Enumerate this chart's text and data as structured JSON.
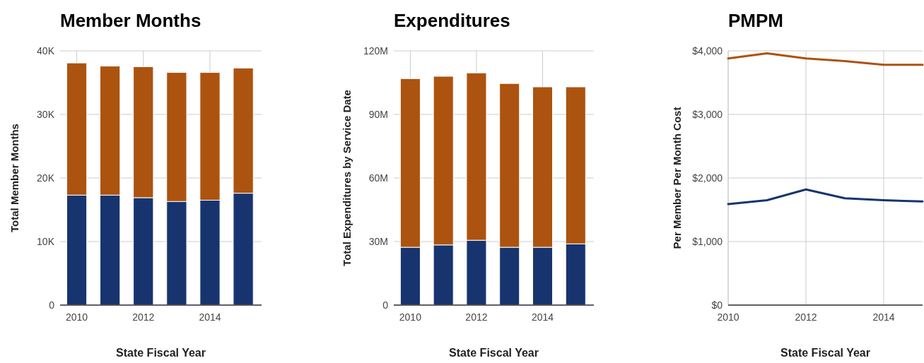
{
  "chart_data": [
    {
      "type": "bar",
      "title": "Member Months",
      "xlabel": "State Fiscal Year",
      "ylabel": "Total Member Months",
      "stacked": true,
      "grid": true,
      "x": [
        2010,
        2011,
        2012,
        2013,
        2014,
        2015
      ],
      "xlim": [
        2009.5,
        2015.55
      ],
      "xticks": [
        2010,
        2012,
        2014
      ],
      "ylim": [
        0,
        40000
      ],
      "yticks": [
        0,
        {
          "value": 10000,
          "label": "10K"
        },
        {
          "value": 20000,
          "label": "20K"
        },
        {
          "value": 30000,
          "label": "30K"
        },
        {
          "value": 40000,
          "label": "40K"
        }
      ],
      "series": [
        {
          "color": "#17346f",
          "values": [
            17300,
            17300,
            16900,
            16300,
            16500,
            17600
          ]
        },
        {
          "color": "#ac5310",
          "values": [
            20800,
            20300,
            20600,
            20300,
            20100,
            19700
          ]
        }
      ]
    },
    {
      "type": "bar",
      "title": "Expenditures",
      "xlabel": "State Fiscal Year",
      "ylabel": "Total Expenditures by Service Date",
      "stacked": true,
      "grid": true,
      "x": [
        2010,
        2011,
        2012,
        2013,
        2014,
        2015
      ],
      "xlim": [
        2009.5,
        2015.55
      ],
      "xticks": [
        2010,
        2012,
        2014
      ],
      "ylim": [
        0,
        120000000
      ],
      "yticks": [
        0,
        {
          "value": 30000000,
          "label": "30M"
        },
        {
          "value": 60000000,
          "label": "60M"
        },
        {
          "value": 90000000,
          "label": "90M"
        },
        {
          "value": 120000000,
          "label": "120M"
        }
      ],
      "series": [
        {
          "color": "#17346f",
          "values": [
            27300000,
            28400000,
            30600000,
            27300000,
            27300000,
            28900000
          ]
        },
        {
          "color": "#ac5310",
          "values": [
            79600000,
            79600000,
            79000000,
            77300000,
            75700000,
            74100000
          ]
        }
      ]
    },
    {
      "type": "line",
      "title": "PMPM",
      "xlabel": "State Fiscal Year",
      "ylabel": "Per Member Per Month Cost",
      "grid": true,
      "x": [
        2010,
        2011,
        2012,
        2013,
        2014,
        2015
      ],
      "xlim": [
        2010,
        2015
      ],
      "xticks": [
        2010,
        2012,
        2014
      ],
      "ylim": [
        0,
        4000
      ],
      "yticks": [
        {
          "value": 0,
          "label": "$0"
        },
        {
          "value": 1000,
          "label": "$1,000"
        },
        {
          "value": 2000,
          "label": "$2,000"
        },
        {
          "value": 3000,
          "label": "$3,000"
        },
        {
          "value": 4000,
          "label": "$4,000"
        }
      ],
      "series": [
        {
          "color": "#17346f",
          "values": [
            1590,
            1650,
            1820,
            1680,
            1650,
            1630
          ]
        },
        {
          "color": "#ac5310",
          "values": [
            3880,
            3960,
            3880,
            3840,
            3780,
            3780
          ]
        }
      ]
    }
  ]
}
